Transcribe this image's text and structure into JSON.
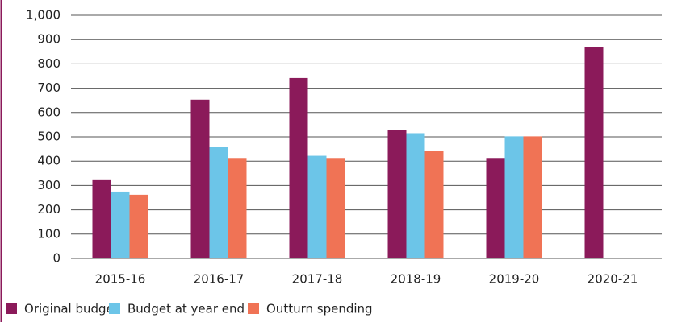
{
  "chart_data": {
    "type": "bar",
    "categories": [
      "2015-16",
      "2016-17",
      "2017-18",
      "2018-19",
      "2019-20",
      "2020-21"
    ],
    "series": [
      {
        "name": "Original budget",
        "color": "#8b1a5a",
        "values": [
          325,
          653,
          742,
          528,
          413,
          870
        ]
      },
      {
        "name": "Budget at year end",
        "color": "#6cc5e8",
        "values": [
          275,
          457,
          422,
          515,
          502,
          null
        ]
      },
      {
        "name": "Outturn spending",
        "color": "#f07355",
        "values": [
          262,
          413,
          413,
          443,
          502,
          null
        ]
      }
    ],
    "ylim": [
      0,
      1000
    ],
    "yticks": [
      0,
      100,
      200,
      300,
      400,
      500,
      600,
      700,
      800,
      900,
      {
        "value": 1000,
        "label": "1,000"
      }
    ],
    "grid": true,
    "legend": "bottom"
  }
}
